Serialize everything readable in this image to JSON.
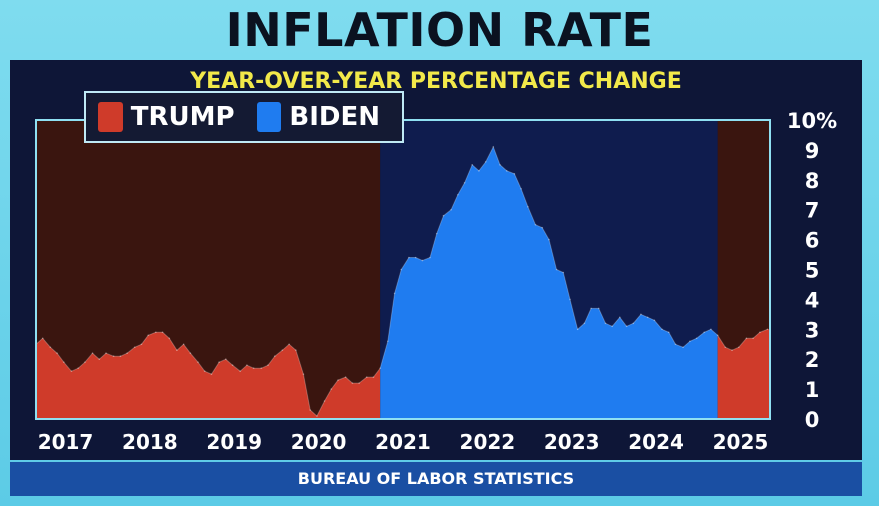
{
  "title": "INFLATION RATE",
  "subtitle": "YEAR-OVER-YEAR PERCENTAGE CHANGE",
  "source": "BUREAU OF LABOR STATISTICS",
  "legend": [
    {
      "label": "TRUMP",
      "color": "#cf3b2a"
    },
    {
      "label": "BIDEN",
      "color": "#1f7cf0"
    }
  ],
  "colors": {
    "trump_fill": "#cf3b2a",
    "biden_fill": "#1f7cf0",
    "trump_bg": "#3a150f",
    "biden_bg": "#0f1c4e",
    "axis_text": "#ffffff"
  },
  "chart_data": {
    "type": "area",
    "title": "YEAR-OVER-YEAR PERCENTAGE CHANGE",
    "xlabel": "",
    "ylabel": "",
    "xlim": [
      2017.0,
      2025.7
    ],
    "ylim": [
      0,
      10
    ],
    "x_ticks": [
      2017,
      2018,
      2019,
      2020,
      2021,
      2022,
      2023,
      2024,
      2025
    ],
    "x_tick_labels": [
      "2017",
      "2018",
      "2019",
      "2020",
      "2021",
      "2022",
      "2023",
      "2024",
      "2025"
    ],
    "y_ticks": [
      0,
      1,
      2,
      3,
      4,
      5,
      6,
      7,
      8,
      9,
      10
    ],
    "y_tick_labels": [
      "0",
      "1",
      "2",
      "3",
      "4",
      "5",
      "6",
      "7",
      "8",
      "9",
      "10%"
    ],
    "grid": false,
    "legend_position": "top-left",
    "periods": [
      {
        "name": "TRUMP",
        "start": 2017.0,
        "end": 2021.08
      },
      {
        "name": "BIDEN",
        "start": 2021.08,
        "end": 2025.08
      },
      {
        "name": "TRUMP",
        "start": 2025.08,
        "end": 2025.7
      }
    ],
    "x": [
      2017.0,
      2017.08,
      2017.17,
      2017.25,
      2017.33,
      2017.42,
      2017.5,
      2017.58,
      2017.67,
      2017.75,
      2017.83,
      2017.92,
      2018.0,
      2018.08,
      2018.17,
      2018.25,
      2018.33,
      2018.42,
      2018.5,
      2018.58,
      2018.67,
      2018.75,
      2018.83,
      2018.92,
      2019.0,
      2019.08,
      2019.17,
      2019.25,
      2019.33,
      2019.42,
      2019.5,
      2019.58,
      2019.67,
      2019.75,
      2019.83,
      2019.92,
      2020.0,
      2020.08,
      2020.17,
      2020.25,
      2020.33,
      2020.42,
      2020.5,
      2020.58,
      2020.67,
      2020.75,
      2020.83,
      2020.92,
      2021.0,
      2021.08,
      2021.17,
      2021.25,
      2021.33,
      2021.42,
      2021.5,
      2021.58,
      2021.67,
      2021.75,
      2021.83,
      2021.92,
      2022.0,
      2022.08,
      2022.17,
      2022.25,
      2022.33,
      2022.42,
      2022.5,
      2022.58,
      2022.67,
      2022.75,
      2022.83,
      2022.92,
      2023.0,
      2023.08,
      2023.17,
      2023.25,
      2023.33,
      2023.42,
      2023.5,
      2023.58,
      2023.67,
      2023.75,
      2023.83,
      2023.92,
      2024.0,
      2024.08,
      2024.17,
      2024.25,
      2024.33,
      2024.42,
      2024.5,
      2024.58,
      2024.67,
      2024.75,
      2024.83,
      2024.92,
      2025.0,
      2025.08,
      2025.17,
      2025.25,
      2025.33,
      2025.42,
      2025.5,
      2025.58,
      2025.67
    ],
    "values": [
      2.5,
      2.7,
      2.4,
      2.2,
      1.9,
      1.6,
      1.7,
      1.9,
      2.2,
      2.0,
      2.2,
      2.1,
      2.1,
      2.2,
      2.4,
      2.5,
      2.8,
      2.9,
      2.9,
      2.7,
      2.3,
      2.5,
      2.2,
      1.9,
      1.6,
      1.5,
      1.9,
      2.0,
      1.8,
      1.6,
      1.8,
      1.7,
      1.7,
      1.8,
      2.1,
      2.3,
      2.5,
      2.3,
      1.5,
      0.3,
      0.1,
      0.6,
      1.0,
      1.3,
      1.4,
      1.2,
      1.2,
      1.4,
      1.4,
      1.7,
      2.6,
      4.2,
      5.0,
      5.4,
      5.4,
      5.3,
      5.4,
      6.2,
      6.8,
      7.0,
      7.5,
      7.9,
      8.5,
      8.3,
      8.6,
      9.1,
      8.5,
      8.3,
      8.2,
      7.7,
      7.1,
      6.5,
      6.4,
      6.0,
      5.0,
      4.9,
      4.0,
      3.0,
      3.2,
      3.7,
      3.7,
      3.2,
      3.1,
      3.4,
      3.1,
      3.2,
      3.5,
      3.4,
      3.3,
      3.0,
      2.9,
      2.5,
      2.4,
      2.6,
      2.7,
      2.9,
      3.0,
      2.8,
      2.4,
      2.3,
      2.4,
      2.7,
      2.7,
      2.9,
      3.0
    ]
  }
}
